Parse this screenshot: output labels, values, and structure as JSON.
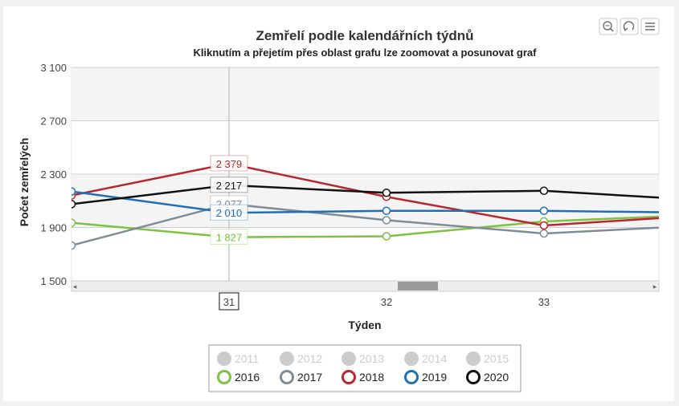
{
  "chart_data": {
    "type": "line",
    "title": "Zemřelí podle kalendářních týdnů",
    "subtitle": "Kliknutím a přejetím přes oblast grafu lze zoomovat a posunovat graf",
    "xlabel": "Týden",
    "ylabel": "Počet zemřelých",
    "ylim": [
      1500,
      3100
    ],
    "yticks": [
      1500,
      1900,
      2300,
      2700,
      3100
    ],
    "ytick_labels": [
      "1 500",
      "1 900",
      "2 300",
      "2 700",
      "3 100"
    ],
    "xlim": [
      30.0,
      33.73
    ],
    "xticks": [
      31,
      32,
      33
    ],
    "xtick_labels": [
      "31",
      "32",
      "33"
    ],
    "crosshair_x": 31,
    "grid": true,
    "legend_position": "bottom-center",
    "series": [
      {
        "name": "2011",
        "visible": false,
        "color": "#cccccc",
        "x": [],
        "y": []
      },
      {
        "name": "2012",
        "visible": false,
        "color": "#cccccc",
        "x": [],
        "y": []
      },
      {
        "name": "2013",
        "visible": false,
        "color": "#cccccc",
        "x": [],
        "y": []
      },
      {
        "name": "2014",
        "visible": false,
        "color": "#cccccc",
        "x": [],
        "y": []
      },
      {
        "name": "2015",
        "visible": false,
        "color": "#cccccc",
        "x": [],
        "y": []
      },
      {
        "name": "2016",
        "visible": true,
        "color": "#7dc242",
        "x": [
          29.5,
          30,
          31,
          32,
          33,
          34
        ],
        "y": [
          1945,
          1935,
          1827,
          1834,
          1945,
          1995
        ],
        "tooltip": "1 827"
      },
      {
        "name": "2017",
        "visible": true,
        "color": "#7f8c95",
        "x": [
          29.5,
          30,
          31,
          32,
          33,
          34
        ],
        "y": [
          1730,
          1765,
          2077,
          1955,
          1855,
          1915
        ],
        "tooltip": "2 077"
      },
      {
        "name": "2018",
        "visible": true,
        "color": "#b8272f",
        "x": [
          29.5,
          30,
          31,
          32,
          33,
          34
        ],
        "y": [
          2100,
          2140,
          2379,
          2130,
          1915,
          1990
        ],
        "tooltip": "2 379"
      },
      {
        "name": "2019",
        "visible": true,
        "color": "#1f6fb5",
        "x": [
          29.5,
          30,
          31,
          32,
          33,
          34
        ],
        "y": [
          2180,
          2170,
          2010,
          2025,
          2025,
          2010
        ],
        "tooltip": "2 010"
      },
      {
        "name": "2020",
        "visible": true,
        "color": "#111111",
        "x": [
          29.5,
          30,
          31,
          32,
          33,
          34
        ],
        "y": [
          2040,
          2075,
          2217,
          2160,
          2175,
          2105
        ],
        "tooltip": "2 217"
      }
    ]
  },
  "toolbar": {
    "zoom_icon": "magnifier-icon",
    "reset_icon": "reset-icon",
    "menu_icon": "menu-icon"
  },
  "scrollbar": {
    "left_arrow": "◂",
    "right_arrow": "▸"
  }
}
